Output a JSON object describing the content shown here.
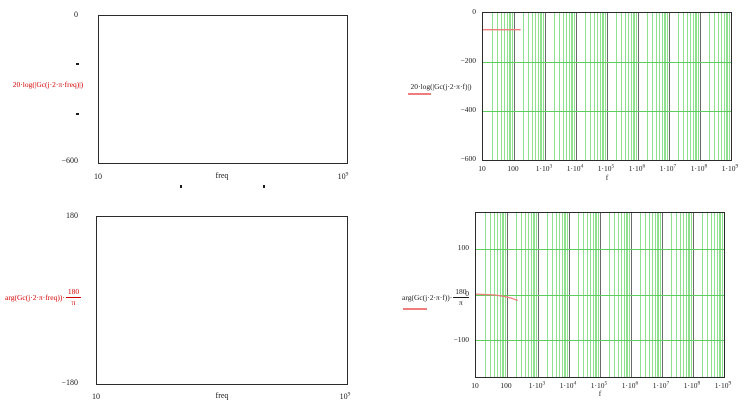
{
  "colors": {
    "expression_red": "#d40000",
    "trace_red": "#ee7d7d",
    "grid_minor_green": "#8fe08f",
    "grid_major_green": "#5ecc5e",
    "grid_decade_gray": "#6a6a6a",
    "plot_border": "#2b2b2b",
    "text": "#1a1a1a",
    "background": "#ffffff"
  },
  "plots": {
    "top_left": {
      "y_axis_label": "20·log(|Gc(j·2·π·freq)|)",
      "x_axis_label": "freq",
      "y_tick_top": "0",
      "y_tick_bottom": "−600",
      "x_tick_min": "10",
      "x_tick_max_base": "10",
      "x_tick_max_exp": "9"
    },
    "bottom_left": {
      "y_axis_label_prefix": "arg(Gc(j·2·π·freq))·",
      "fraction_numerator": "180",
      "fraction_denominator": "π",
      "x_axis_label": "freq",
      "y_tick_top": "180",
      "y_tick_bottom": "−180",
      "x_tick_min": "10",
      "x_tick_max_base": "10",
      "x_tick_max_exp": "9"
    },
    "top_right": {
      "y_axis_label": "20·log(|Gc(j·2·π·f)|)",
      "x_axis_label": "f"
    },
    "bottom_right": {
      "y_axis_label_prefix": "arg(Gc(j·2·π·f))·",
      "fraction_numerator": "180",
      "fraction_denominator": "π",
      "x_axis_label": "f"
    }
  },
  "chart_data": [
    {
      "id": "top-left-magnitude",
      "type": "line",
      "x_scale": "log",
      "xlabel": "freq",
      "ylabel": "20·log(|Gc(j·2·π·freq)|)",
      "x_range": [
        10,
        1000000000
      ],
      "y_range": [
        -600,
        0
      ],
      "x_tick_labels": [
        "10",
        "10⁹"
      ],
      "y_tick_labels": [
        "0",
        "−600"
      ],
      "grid": false,
      "series": []
    },
    {
      "id": "top-right-magnitude",
      "type": "line",
      "x_scale": "log",
      "xlabel": "f",
      "ylabel": "20·log(|Gc(j·2·π·f)|)",
      "x_range": [
        10,
        1000000000
      ],
      "y_range": [
        -600,
        0
      ],
      "grid": true,
      "y_gridlines": [
        -200,
        -400
      ],
      "y_ticks": [
        {
          "label": "0",
          "value": 0
        },
        {
          "label": "−200",
          "value": -200
        },
        {
          "label": "−400",
          "value": -400
        },
        {
          "label": "−600",
          "value": -600
        }
      ],
      "x_tick_labels": [
        {
          "base": "10"
        },
        {
          "base": "100"
        },
        {
          "base": "1·10",
          "exp": "3"
        },
        {
          "base": "1·10",
          "exp": "4"
        },
        {
          "base": "1·10",
          "exp": "5"
        },
        {
          "base": "1·10",
          "exp": "6"
        },
        {
          "base": "1·10",
          "exp": "7"
        },
        {
          "base": "1·10",
          "exp": "8"
        },
        {
          "base": "1·10",
          "exp": "9"
        }
      ],
      "series": [
        {
          "name": "20·log(|Gc(j·2·π·f)|)",
          "color": "#ee7d7d",
          "points": [
            [
              10,
              -68
            ],
            [
              165,
              -68
            ]
          ]
        }
      ]
    },
    {
      "id": "bottom-left-phase",
      "type": "line",
      "x_scale": "log",
      "xlabel": "freq",
      "ylabel": "arg(Gc(j·2·π·freq))·180/π",
      "x_range": [
        10,
        1000000000
      ],
      "y_range": [
        -180,
        180
      ],
      "x_tick_labels": [
        "10",
        "10⁹"
      ],
      "y_tick_labels": [
        "180",
        "−180"
      ],
      "grid": false,
      "series": []
    },
    {
      "id": "bottom-right-phase",
      "type": "line",
      "x_scale": "log",
      "xlabel": "f",
      "ylabel": "arg(Gc(j·2·π·f))·180/π",
      "x_range": [
        10,
        1000000000
      ],
      "y_range": [
        -180,
        180
      ],
      "grid": true,
      "y_gridlines": [
        100,
        0,
        -100
      ],
      "y_ticks": [
        {
          "label": "100",
          "value": 100
        },
        {
          "label": "0",
          "value": 0
        },
        {
          "label": "−100",
          "value": -100
        }
      ],
      "x_tick_labels": [
        {
          "base": "10"
        },
        {
          "base": "100"
        },
        {
          "base": "1·10",
          "exp": "3"
        },
        {
          "base": "1·10",
          "exp": "4"
        },
        {
          "base": "1·10",
          "exp": "5"
        },
        {
          "base": "1·10",
          "exp": "6"
        },
        {
          "base": "1·10",
          "exp": "7"
        },
        {
          "base": "1·10",
          "exp": "8"
        },
        {
          "base": "1·10",
          "exp": "9"
        }
      ],
      "series": [
        {
          "name": "arg(Gc(j·2·π·f))·180/π",
          "color": "#ee7d7d",
          "points": [
            [
              10,
              2
            ],
            [
              40,
              0
            ],
            [
              80,
              -3
            ],
            [
              140,
              -7
            ],
            [
              220,
              -12
            ]
          ]
        }
      ]
    }
  ]
}
